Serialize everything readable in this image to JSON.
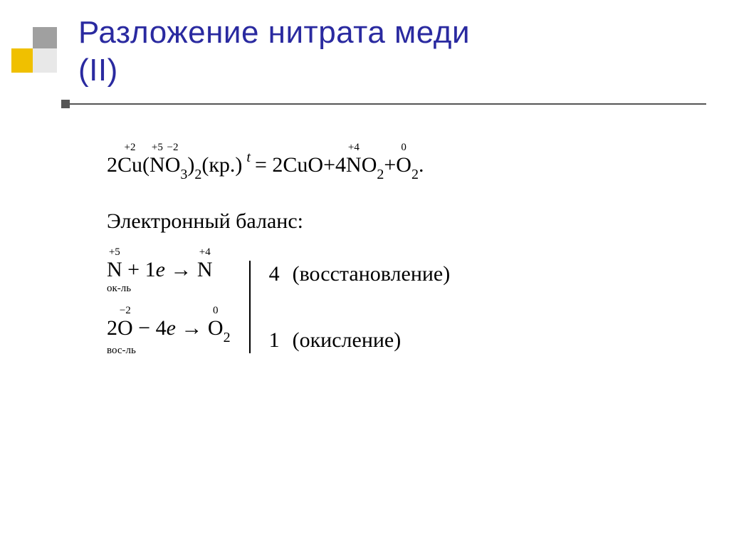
{
  "title_color": "#2a2aa0",
  "logo_colors": {
    "top": "#a0a0a0",
    "bottom_left": "#f0c000",
    "bottom_right": "#e8e8e8"
  },
  "title_line1": "Разложение нитрата меди",
  "title_line2": "(II)",
  "equation": {
    "lhs_coef": "2",
    "cu": "Cu",
    "cu_ox": "+2",
    "open": "(",
    "n": "N",
    "n_ox": "+5",
    "o": "O",
    "o_ox": "−2",
    "o_sub": "3",
    "close": ")",
    "close_sub": "2",
    "phase": " (кр.) ",
    "t_label": "t",
    "equals": "=",
    "rhs1_coef": "2",
    "rhs1": "CuO",
    "plus": " + ",
    "rhs2_coef": "4",
    "rhs2_n": "N",
    "rhs2_n_ox": "+4",
    "rhs2_o": "O",
    "rhs2_sub": "2",
    "rhs3_o": "O",
    "rhs3_o_ox": "0",
    "rhs3_sub": "2",
    "period": "."
  },
  "balance_title": "Электронный баланс:",
  "half1": {
    "lhs_sym": "N",
    "lhs_ox": "+5",
    "op": " + 1",
    "e": "e",
    "arrow": " → ",
    "rhs_sym": "N",
    "rhs_ox": "+4",
    "role": "ок-ль",
    "mult": "4",
    "label": "(восстановление)"
  },
  "half2": {
    "coef": "2",
    "lhs_sym": "O",
    "lhs_ox": "−2",
    "op": " − 4",
    "e": "e",
    "arrow": " → ",
    "rhs_sym": "O",
    "rhs_ox": "0",
    "rhs_sub": "2",
    "role": "вос-ль",
    "mult": "1",
    "label": "(окисление)"
  }
}
